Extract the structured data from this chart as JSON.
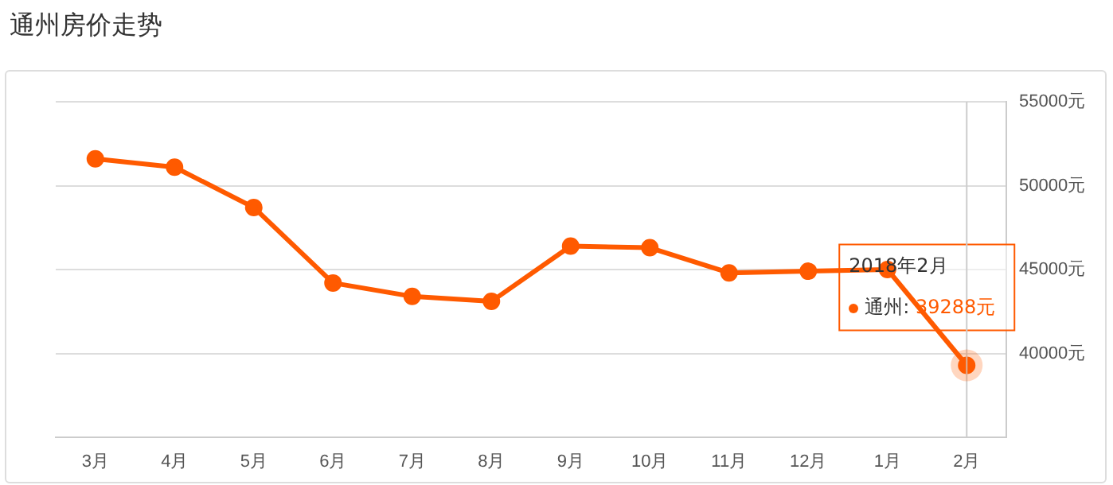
{
  "chart_data": {
    "type": "line",
    "title": "通州房价走势",
    "categories": [
      "3月",
      "4月",
      "5月",
      "6月",
      "7月",
      "8月",
      "9月",
      "10月",
      "11月",
      "12月",
      "1月",
      "2月"
    ],
    "series": [
      {
        "name": "通州:",
        "color": "#ff5a00",
        "values": [
          51600,
          51100,
          48700,
          44200,
          43400,
          43100,
          46400,
          46300,
          44800,
          44900,
          45000,
          39288
        ],
        "value_labels": [
          null,
          null,
          null,
          null,
          null,
          null,
          null,
          null,
          null,
          null,
          null,
          "39288元"
        ]
      }
    ],
    "ylim": [
      35000,
      55000
    ],
    "yticks": [
      {
        "value": 40000,
        "label": "40000元"
      },
      {
        "value": 45000,
        "label": "45000元"
      },
      {
        "value": 50000,
        "label": "50000元"
      },
      {
        "value": 55000,
        "label": "55000元"
      }
    ],
    "grid": "y",
    "marker": "circle",
    "line_style": "solid",
    "legend": "right",
    "ref_lines": [
      {
        "axis": "x",
        "value": "2月",
        "color": "#cccccc"
      }
    ],
    "annotations": [
      "2018年2月"
    ]
  }
}
